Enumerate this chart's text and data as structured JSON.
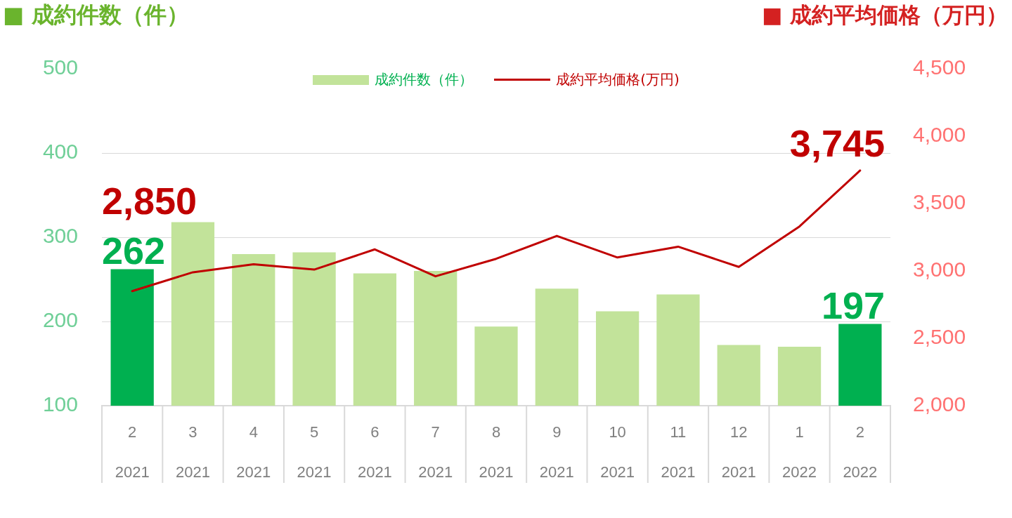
{
  "chart_data": {
    "type": "bar",
    "ylabel": "■ 成約件数（件）",
    "y2label": "■ 成約平均価格（万円）",
    "categories": [
      "2\n2021",
      "3\n2021",
      "4\n2021",
      "5\n2021",
      "6\n2021",
      "7\n2021",
      "8\n2021",
      "9\n2021",
      "10\n2021",
      "11\n2021",
      "12\n2021",
      "1\n2022",
      "2\n2022"
    ],
    "series": [
      {
        "name": "成約件数（件）",
        "color": "#c2e39a",
        "colors": [
          "#00b050",
          "#c2e39a",
          "#c2e39a",
          "#c2e39a",
          "#c2e39a",
          "#c2e39a",
          "#c2e39a",
          "#c2e39a",
          "#c2e39a",
          "#c2e39a",
          "#c2e39a",
          "#c2e39a",
          "#00b050"
        ],
        "values": [
          262,
          318,
          280,
          282,
          257,
          260,
          194,
          239,
          212,
          232,
          172,
          170,
          197
        ],
        "value_labels": [
          "262",
          null,
          null,
          null,
          null,
          null,
          null,
          null,
          null,
          null,
          null,
          null,
          "197"
        ]
      },
      {
        "name": "成約平均価格(万円)",
        "type": "line",
        "axis": "y2",
        "color": "#c00000",
        "values": [
          2850,
          2990,
          3050,
          3010,
          3160,
          2960,
          3090,
          3260,
          3100,
          3180,
          3030,
          3330,
          3745
        ],
        "value_labels": [
          "2,850",
          null,
          null,
          null,
          null,
          null,
          null,
          null,
          null,
          null,
          null,
          null,
          "3,745"
        ]
      }
    ],
    "ylim": [
      100,
      500
    ],
    "yticks": [
      100,
      200,
      300,
      400,
      500
    ],
    "y2lim": [
      2000,
      4500
    ],
    "y2ticks": [
      {
        "value": 2000,
        "label": "2,000"
      },
      {
        "value": 2500,
        "label": "2,500"
      },
      {
        "value": 3000,
        "label": "3,000"
      },
      {
        "value": 3500,
        "label": "3,500"
      },
      {
        "value": 4000,
        "label": "4,000"
      },
      {
        "value": 4500,
        "label": "4,500"
      }
    ],
    "grid": "y",
    "legend": "top",
    "marker": "none"
  }
}
